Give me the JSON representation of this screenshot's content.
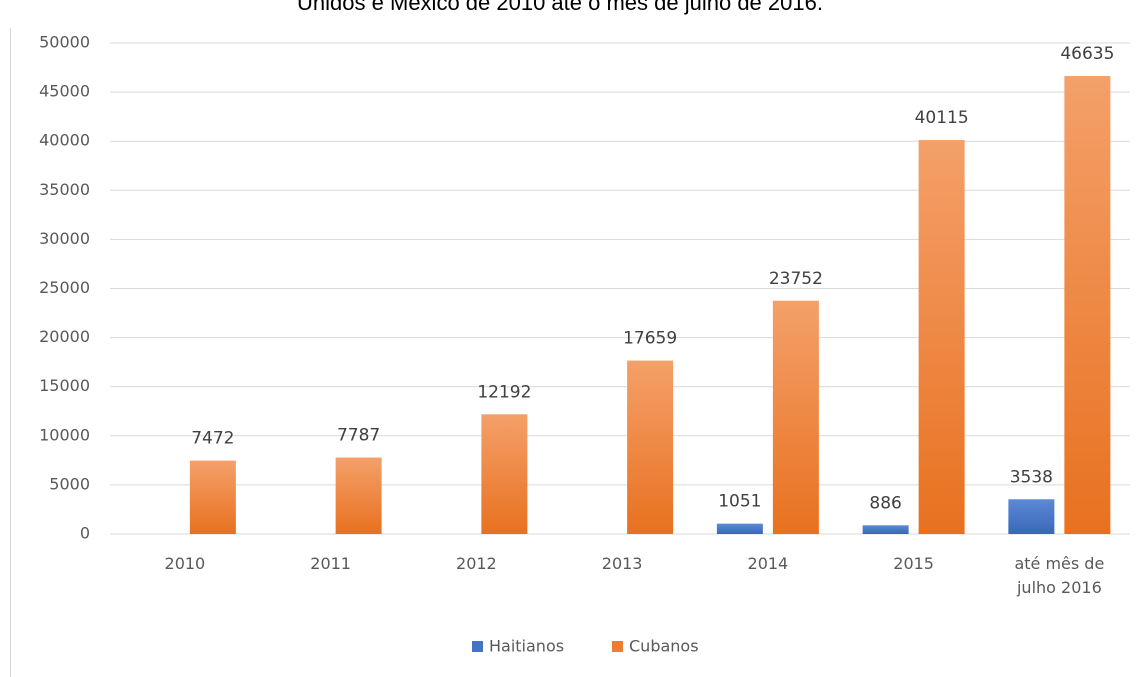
{
  "chart_data": {
    "type": "bar",
    "title": "Unidos e México de 2010 até o mês de julho de 2016.",
    "categories": [
      "2010",
      "2011",
      "2012",
      "2013",
      "2014",
      "2015",
      "até mês de julho 2016"
    ],
    "series": [
      {
        "name": "Haitianos",
        "color": "#4472c4",
        "values": [
          null,
          null,
          null,
          null,
          1051,
          886,
          3538
        ]
      },
      {
        "name": "Cubanos",
        "color": "#ed7d31",
        "values": [
          7472,
          7787,
          12192,
          17659,
          23752,
          40115,
          46635
        ]
      }
    ],
    "ylim": [
      0,
      50000
    ],
    "yticks": [
      0,
      5000,
      10000,
      15000,
      20000,
      25000,
      30000,
      35000,
      40000,
      45000,
      50000
    ],
    "grid": true,
    "legend": "bottom"
  }
}
